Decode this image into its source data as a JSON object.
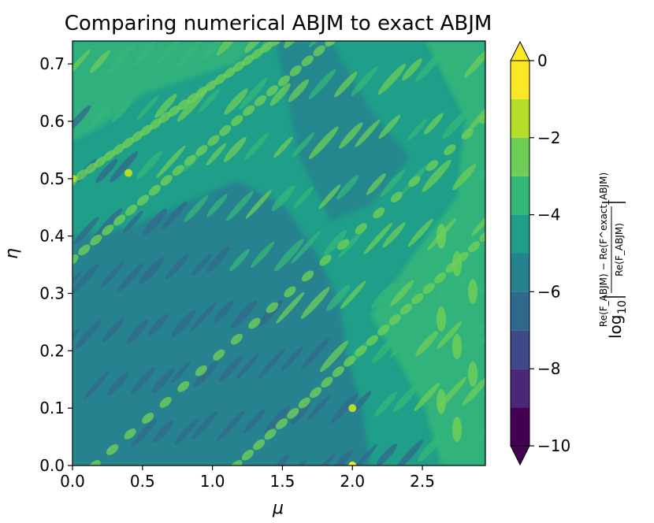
{
  "chart_data": {
    "type": "heatmap",
    "title": "Comparing numerical ABJM to exact ABJM",
    "xlabel": "μ",
    "ylabel": "η",
    "xlim": [
      0.0,
      2.95
    ],
    "ylim": [
      0.0,
      0.74
    ],
    "x_ticks": [
      "0.0",
      "0.5",
      "1.0",
      "1.5",
      "2.0",
      "2.5"
    ],
    "x_tick_values": [
      0.0,
      0.5,
      1.0,
      1.5,
      2.0,
      2.5
    ],
    "y_ticks": [
      "0.0",
      "0.1",
      "0.2",
      "0.3",
      "0.4",
      "0.5",
      "0.6",
      "0.7"
    ],
    "y_tick_values": [
      0.0,
      0.1,
      0.2,
      0.3,
      0.4,
      0.5,
      0.6,
      0.7
    ],
    "colorbar": {
      "label_prefix": "log",
      "label_sub": "10",
      "label_numerator": "Re(F_ABJM) − Re(F^exact_ABJM)",
      "label_denominator": "Re(F_ABJM)",
      "ticks": [
        "0",
        "−2",
        "−4",
        "−6",
        "−8",
        "−10"
      ],
      "tick_values": [
        0,
        -2,
        -4,
        -6,
        -8,
        -10
      ],
      "levels": [
        -10,
        -9,
        -8,
        -7,
        -6,
        -5,
        -4,
        -3,
        -2,
        -1,
        0
      ],
      "extend": "both",
      "colors": [
        "#440154",
        "#482878",
        "#3e4989",
        "#31688e",
        "#26828e",
        "#1f9e89",
        "#35b779",
        "#6ece58",
        "#b5de2b",
        "#fde725"
      ],
      "under_color": "#440154",
      "over_color": "#fde725"
    },
    "colormap": "viridis"
  }
}
